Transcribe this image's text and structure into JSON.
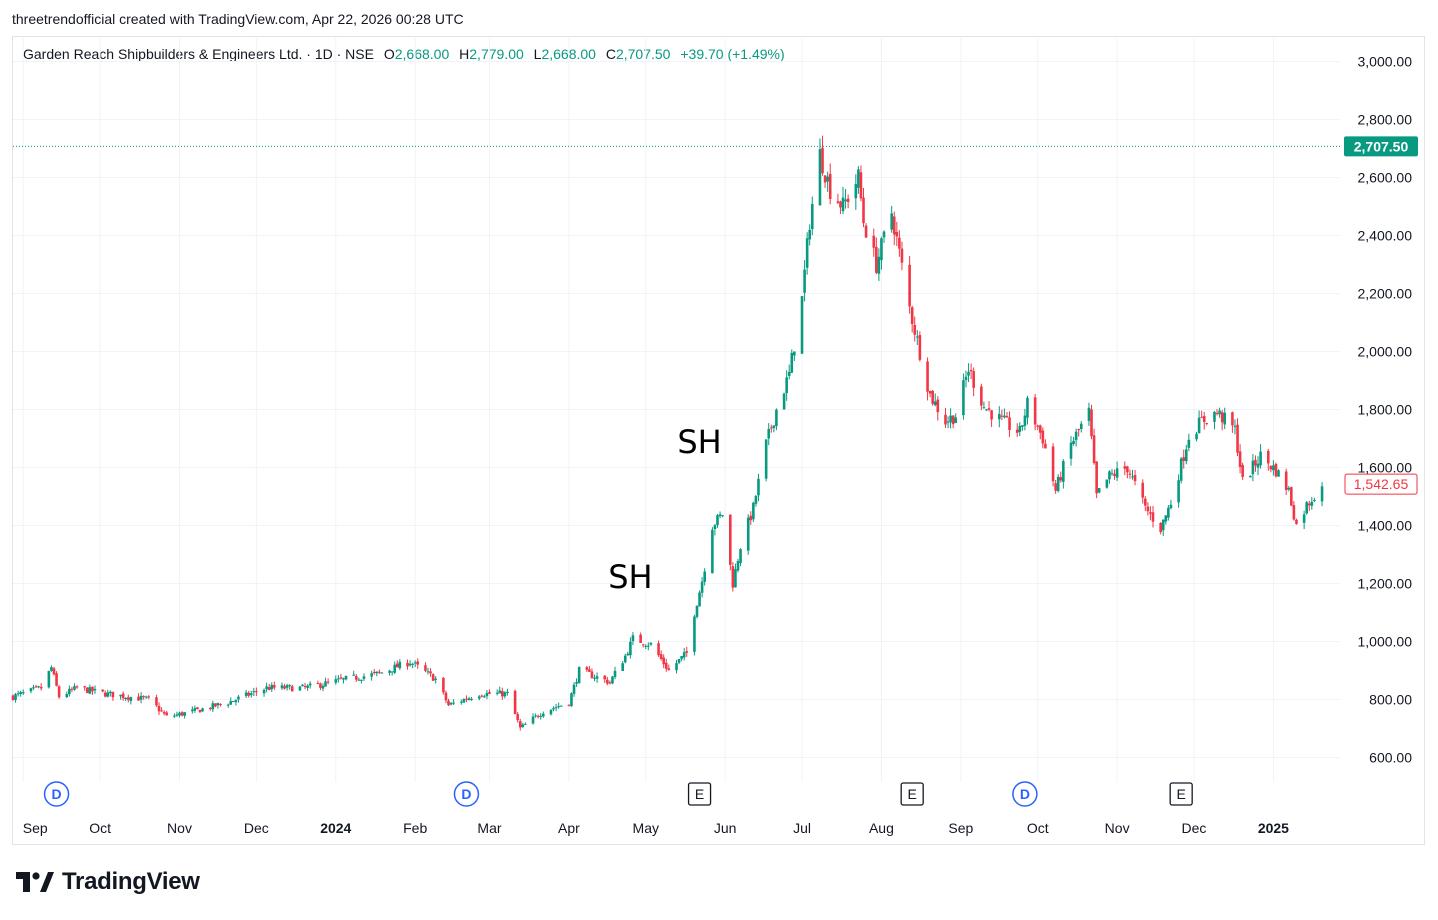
{
  "header": {
    "text": "threetrendofficial created with TradingView.com, Apr 22, 2026 00:28 UTC"
  },
  "legend": {
    "symbol": "Garden Reach Shipbuilders & Engineers Ltd. · 1D · NSE",
    "o_label": "O",
    "o": "2,668.00",
    "h_label": "H",
    "h": "2,779.00",
    "l_label": "L",
    "l": "2,668.00",
    "c_label": "C",
    "c": "2,707.50",
    "change": "+39.70 (+1.49%)"
  },
  "brand": {
    "name": "TradingView",
    "logo_icon": "tradingview-logo-icon"
  },
  "colors": {
    "up": "#089981",
    "down": "#f23645",
    "grid": "#f0f3fa",
    "axis_text": "#131722",
    "event_d": "#2962ff",
    "event_e": "#131722"
  },
  "chart_data": {
    "type": "candlestick",
    "title": "Garden Reach Shipbuilders & Engineers Ltd. · 1D · NSE",
    "ylim": [
      550,
      3080
    ],
    "y_ticks": [
      "600.00",
      "800.00",
      "1,000.00",
      "1,200.00",
      "1,400.00",
      "1,600.00",
      "1,800.00",
      "2,000.00",
      "2,200.00",
      "2,400.00",
      "2,600.00",
      "2,800.00",
      "3,000.00"
    ],
    "y_tick_values": [
      600,
      800,
      1000,
      1200,
      1400,
      1600,
      1800,
      2000,
      2200,
      2400,
      2600,
      2800,
      3000
    ],
    "x_labels": [
      "Sep",
      "Oct",
      "Nov",
      "Dec",
      "2024",
      "Feb",
      "Mar",
      "Apr",
      "May",
      "Jun",
      "Jul",
      "Aug",
      "Sep",
      "Oct",
      "Nov",
      "Dec",
      "2025"
    ],
    "x_label_dates": [
      "2023-09-01",
      "2023-10-01",
      "2023-11-01",
      "2023-12-01",
      "2024-01-01",
      "2024-02-01",
      "2024-03-01",
      "2024-04-01",
      "2024-05-01",
      "2024-06-01",
      "2024-07-01",
      "2024-08-01",
      "2024-09-01",
      "2024-10-01",
      "2024-11-01",
      "2024-12-01",
      "2025-01-01"
    ],
    "x_range": [
      "2023-08-28",
      "2025-01-27"
    ],
    "bold_x_labels": [
      "2024",
      "2025"
    ],
    "price_line": {
      "value": 2707.5,
      "label": "2,707.50"
    },
    "last_price": {
      "value": 1542.65,
      "label": "1,542.65"
    },
    "annotations": [
      {
        "text": "SH",
        "date": "2024-04-25",
        "value": 1185
      },
      {
        "text": "SH",
        "date": "2024-05-22",
        "value": 1650
      }
    ],
    "events": [
      {
        "type": "D",
        "date": "2023-09-14"
      },
      {
        "type": "D",
        "date": "2024-02-21"
      },
      {
        "type": "E",
        "date": "2024-05-22"
      },
      {
        "type": "E",
        "date": "2024-08-13"
      },
      {
        "type": "D",
        "date": "2024-09-26"
      },
      {
        "type": "E",
        "date": "2024-11-26"
      }
    ],
    "series": [
      {
        "type": "close",
        "points": [
          [
            "2023-08-28",
            810
          ],
          [
            "2023-09-08",
            840
          ],
          [
            "2023-09-12",
            910
          ],
          [
            "2023-09-15",
            810
          ],
          [
            "2023-09-22",
            840
          ],
          [
            "2023-10-03",
            820
          ],
          [
            "2023-10-20",
            800
          ],
          [
            "2023-10-27",
            740
          ],
          [
            "2023-11-07",
            760
          ],
          [
            "2023-11-20",
            790
          ],
          [
            "2023-12-05",
            840
          ],
          [
            "2023-12-20",
            840
          ],
          [
            "2024-01-05",
            870
          ],
          [
            "2024-01-18",
            890
          ],
          [
            "2024-01-30",
            930
          ],
          [
            "2024-02-09",
            870
          ],
          [
            "2024-02-14",
            780
          ],
          [
            "2024-02-26",
            820
          ],
          [
            "2024-03-08",
            820
          ],
          [
            "2024-03-13",
            700
          ],
          [
            "2024-03-22",
            760
          ],
          [
            "2024-04-01",
            790
          ],
          [
            "2024-04-05",
            900
          ],
          [
            "2024-04-17",
            860
          ],
          [
            "2024-04-23",
            950
          ],
          [
            "2024-04-26",
            1010
          ],
          [
            "2024-05-03",
            990
          ],
          [
            "2024-05-10",
            900
          ],
          [
            "2024-05-17",
            960
          ],
          [
            "2024-05-20",
            1100
          ],
          [
            "2024-05-23",
            1210
          ],
          [
            "2024-05-27",
            1400
          ],
          [
            "2024-05-31",
            1440
          ],
          [
            "2024-06-04",
            1200
          ],
          [
            "2024-06-07",
            1330
          ],
          [
            "2024-06-12",
            1460
          ],
          [
            "2024-06-17",
            1680
          ],
          [
            "2024-06-21",
            1800
          ],
          [
            "2024-06-26",
            1920
          ],
          [
            "2024-07-01",
            2180
          ],
          [
            "2024-07-04",
            2450
          ],
          [
            "2024-07-08",
            2680
          ],
          [
            "2024-07-12",
            2560
          ],
          [
            "2024-07-17",
            2500
          ],
          [
            "2024-07-23",
            2600
          ],
          [
            "2024-07-25",
            2450
          ],
          [
            "2024-07-30",
            2300
          ],
          [
            "2024-08-05",
            2480
          ],
          [
            "2024-08-12",
            2150
          ],
          [
            "2024-08-16",
            2000
          ],
          [
            "2024-08-20",
            1850
          ],
          [
            "2024-08-26",
            1760
          ],
          [
            "2024-08-30",
            1780
          ],
          [
            "2024-09-04",
            1940
          ],
          [
            "2024-09-10",
            1810
          ],
          [
            "2024-09-17",
            1760
          ],
          [
            "2024-09-24",
            1720
          ],
          [
            "2024-09-27",
            1820
          ],
          [
            "2024-10-03",
            1700
          ],
          [
            "2024-10-08",
            1520
          ],
          [
            "2024-10-14",
            1680
          ],
          [
            "2024-10-21",
            1790
          ],
          [
            "2024-10-24",
            1500
          ],
          [
            "2024-10-29",
            1570
          ],
          [
            "2024-11-05",
            1600
          ],
          [
            "2024-11-12",
            1460
          ],
          [
            "2024-11-18",
            1390
          ],
          [
            "2024-11-22",
            1480
          ],
          [
            "2024-11-29",
            1710
          ],
          [
            "2024-12-04",
            1760
          ],
          [
            "2024-12-10",
            1790
          ],
          [
            "2024-12-17",
            1730
          ],
          [
            "2024-12-20",
            1550
          ],
          [
            "2024-12-27",
            1640
          ],
          [
            "2025-01-02",
            1590
          ],
          [
            "2025-01-07",
            1520
          ],
          [
            "2025-01-10",
            1400
          ],
          [
            "2025-01-14",
            1470
          ],
          [
            "2025-01-20",
            1542.65
          ]
        ]
      }
    ]
  }
}
